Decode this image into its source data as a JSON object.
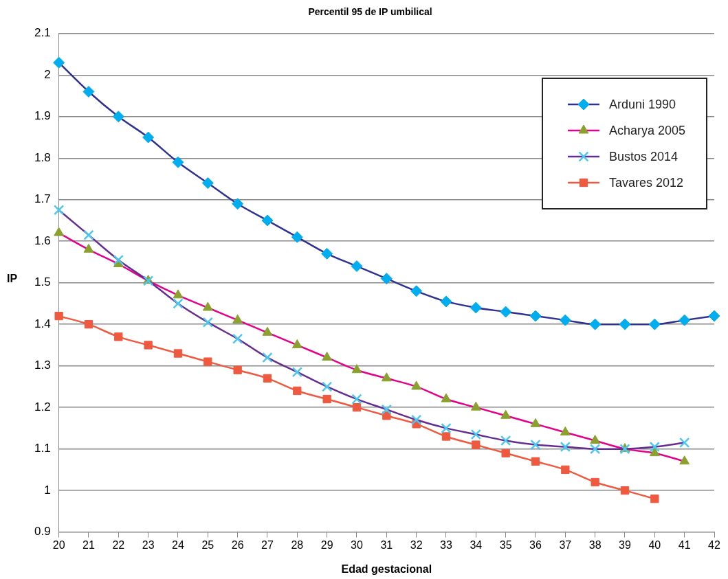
{
  "chart_data": {
    "type": "line",
    "title": "Percentil 95 de IP umbilical",
    "xlabel": "Edad gestacional",
    "ylabel": "IP",
    "categories": [
      "20",
      "21",
      "22",
      "23",
      "24",
      "25",
      "26",
      "27",
      "28",
      "29",
      "30",
      "31",
      "32",
      "33",
      "34",
      "35",
      "36",
      "37",
      "38",
      "39",
      "40",
      "41",
      "42"
    ],
    "ylim": [
      0.9,
      2.1
    ],
    "yticks": [
      0.9,
      1,
      1.1,
      1.2,
      1.3,
      1.4,
      1.5,
      1.6,
      1.7,
      1.8,
      1.9,
      2,
      2.1
    ],
    "grid": "y",
    "legend": "top right",
    "series": [
      {
        "name": "Arduni 1990",
        "color": "#2e3192",
        "marker": "diamond",
        "values": [
          2.03,
          1.96,
          1.9,
          1.85,
          1.79,
          1.74,
          1.69,
          1.65,
          1.61,
          1.57,
          1.54,
          1.51,
          1.48,
          1.455,
          1.44,
          1.43,
          1.42,
          1.41,
          1.4,
          1.4,
          1.4,
          1.41,
          1.42
        ],
        "colors": [
          "#00aeef",
          "#00aeef",
          "#00aeef",
          "#00aeef",
          "#00aeef",
          "#00aeef",
          "#00aeef",
          "#00aeef",
          "#00aeef",
          "#00aeef",
          "#00aeef",
          "#00aeef",
          "#00aeef",
          "#00aeef",
          "#00aeef",
          "#00aeef",
          "#00aeef",
          "#00aeef",
          "#00aeef",
          "#00aeef",
          "#00aeef",
          "#00aeef",
          "#00aeef"
        ]
      },
      {
        "name": "Acharya 2005",
        "color": "#e5008a",
        "marker": "triangle",
        "values": [
          1.62,
          1.58,
          1.545,
          1.505,
          1.47,
          1.44,
          1.41,
          1.38,
          1.35,
          1.32,
          1.29,
          1.27,
          1.25,
          1.22,
          1.2,
          1.18,
          1.16,
          1.14,
          1.12,
          1.1,
          1.09,
          1.07,
          null
        ],
        "colors": [
          "#8aa12e",
          "#8aa12e",
          "#8aa12e",
          "#8aa12e",
          "#8aa12e",
          "#8aa12e",
          "#8aa12e",
          "#8aa12e",
          "#8aa12e",
          "#8aa12e",
          "#8aa12e",
          "#8aa12e",
          "#8aa12e",
          "#8aa12e",
          "#8aa12e",
          "#8aa12e",
          "#8aa12e",
          "#8aa12e",
          "#8aa12e",
          "#8aa12e",
          "#8aa12e",
          "#8aa12e",
          "#8aa12e"
        ]
      },
      {
        "name": "Bustos 2014",
        "color": "#662d91",
        "marker": "cross",
        "values": [
          1.675,
          1.615,
          1.555,
          1.505,
          1.45,
          1.405,
          1.365,
          1.32,
          1.285,
          1.25,
          1.22,
          1.195,
          1.17,
          1.15,
          1.135,
          1.12,
          1.11,
          1.105,
          1.1,
          1.1,
          1.105,
          1.115,
          null
        ],
        "colors": [
          "#4ac8f0",
          "#4ac8f0",
          "#4ac8f0",
          "#4ac8f0",
          "#4ac8f0",
          "#4ac8f0",
          "#4ac8f0",
          "#4ac8f0",
          "#4ac8f0",
          "#4ac8f0",
          "#4ac8f0",
          "#4ac8f0",
          "#4ac8f0",
          "#4ac8f0",
          "#4ac8f0",
          "#4ac8f0",
          "#4ac8f0",
          "#4ac8f0",
          "#4ac8f0",
          "#4ac8f0",
          "#4ac8f0",
          "#4ac8f0",
          "#4ac8f0"
        ]
      },
      {
        "name": "Tavares 2012",
        "color": "#ee5a40",
        "marker": "square",
        "values": [
          1.42,
          1.4,
          1.37,
          1.35,
          1.33,
          1.31,
          1.29,
          1.27,
          1.24,
          1.22,
          1.2,
          1.18,
          1.16,
          1.13,
          1.11,
          1.09,
          1.07,
          1.05,
          1.02,
          1.0,
          0.98,
          null,
          null
        ]
      }
    ]
  }
}
